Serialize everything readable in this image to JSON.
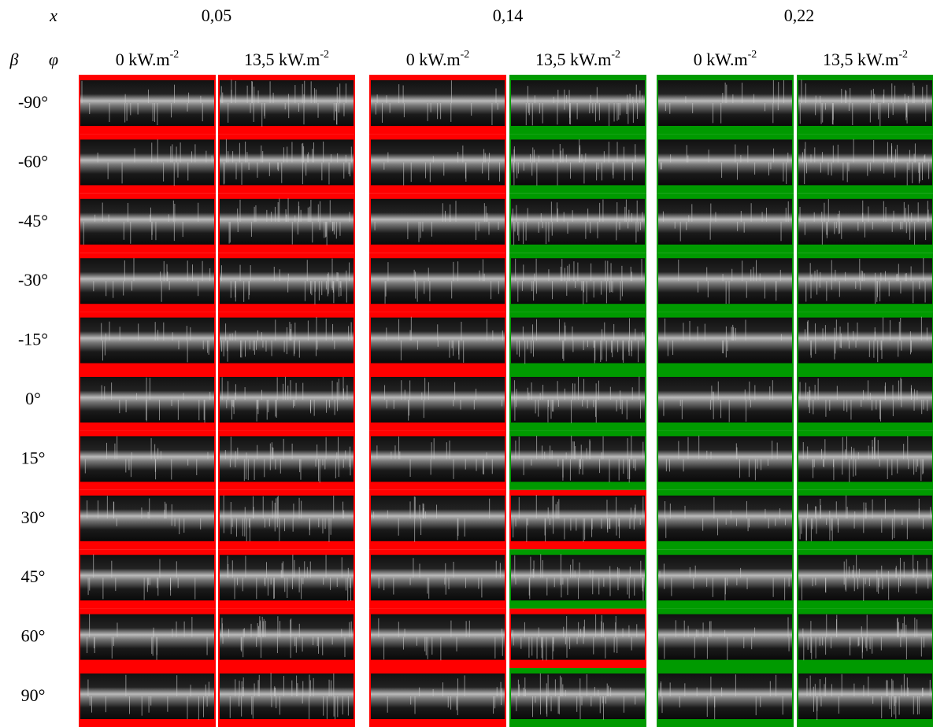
{
  "header": {
    "x_label": "x",
    "x_values": [
      "0,05",
      "0,14",
      "0,22"
    ],
    "beta": "β",
    "phi": "φ",
    "columns": [
      {
        "text": "0 kW.m",
        "sup": "-2"
      },
      {
        "text": "13,5 kW.m",
        "sup": "-2"
      },
      {
        "text": "0 kW.m",
        "sup": "-2"
      },
      {
        "text": "13,5 kW.m",
        "sup": "-2"
      },
      {
        "text": "0 kW.m",
        "sup": "-2"
      },
      {
        "text": "13,5 kW.m",
        "sup": "-2"
      }
    ]
  },
  "rows": [
    {
      "label": "-90°",
      "cells": [
        "#ff0000",
        "#ff0000",
        "#ff0000",
        "#009a00",
        "#009a00",
        "#009a00"
      ]
    },
    {
      "label": "-60°",
      "cells": [
        "#ff0000",
        "#ff0000",
        "#ff0000",
        "#009a00",
        "#009a00",
        "#009a00"
      ]
    },
    {
      "label": "-45°",
      "cells": [
        "#ff0000",
        "#ff0000",
        "#ff0000",
        "#009a00",
        "#009a00",
        "#009a00"
      ]
    },
    {
      "label": "-30°",
      "cells": [
        "#ff0000",
        "#ff0000",
        "#ff0000",
        "#009a00",
        "#009a00",
        "#009a00"
      ]
    },
    {
      "label": "-15°",
      "cells": [
        "#ff0000",
        "#ff0000",
        "#ff0000",
        "#009a00",
        "#009a00",
        "#009a00"
      ]
    },
    {
      "label": "0°",
      "cells": [
        "#ff0000",
        "#ff0000",
        "#ff0000",
        "#009a00",
        "#009a00",
        "#009a00"
      ]
    },
    {
      "label": "15°",
      "cells": [
        "#ff0000",
        "#ff0000",
        "#ff0000",
        "#009a00",
        "#009a00",
        "#009a00"
      ]
    },
    {
      "label": "30°",
      "cells": [
        "#ff0000",
        "#ff0000",
        "#ff0000",
        "#ff0000",
        "#009a00",
        "#009a00"
      ]
    },
    {
      "label": "45°",
      "cells": [
        "#ff0000",
        "#ff0000",
        "#ff0000",
        "#009a00",
        "#009a00",
        "#009a00"
      ]
    },
    {
      "label": "60°",
      "cells": [
        "#ff0000",
        "#ff0000",
        "#ff0000",
        "#ff0000",
        "#009a00",
        "#009a00"
      ]
    },
    {
      "label": "90°",
      "cells": [
        "#ff0000",
        "#ff0000",
        "#ff0000",
        "#009a00",
        "#009a00",
        "#009a00"
      ]
    }
  ]
}
